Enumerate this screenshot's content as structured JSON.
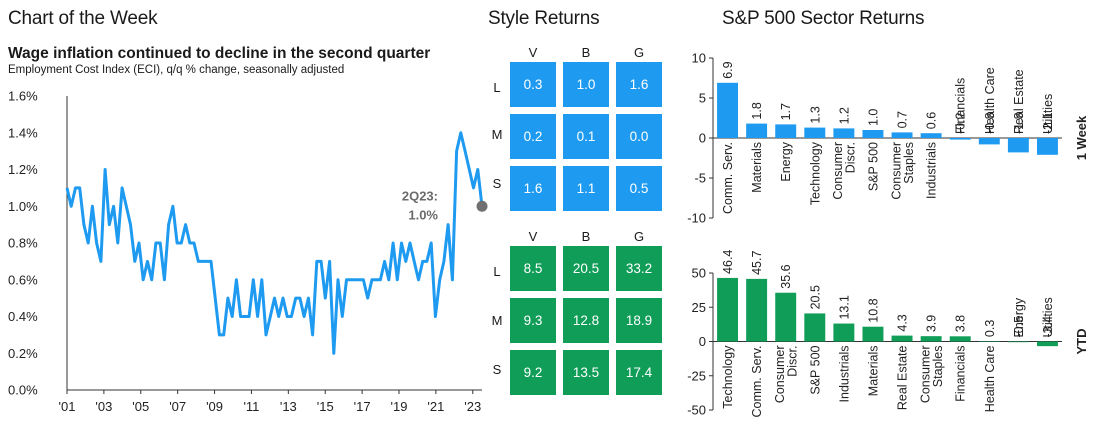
{
  "headers": {
    "chart_of_week": "Chart of the Week",
    "style_returns": "Style Returns",
    "sector_returns": "S&P 500 Sector Returns"
  },
  "colors": {
    "line": "#1e9bf0",
    "blue": "#1e9bf0",
    "green": "#0f9d58",
    "marker": "#707070"
  },
  "chart_data": [
    {
      "type": "line",
      "title": "Wage inflation continued to decline in the second quarter",
      "subtitle": "Employment Cost Index (ECI), q/q % change, seasonally adjusted",
      "ylim": [
        0,
        1.6
      ],
      "yticks": [
        "0.0%",
        "0.2%",
        "0.4%",
        "0.6%",
        "0.8%",
        "1.0%",
        "1.2%",
        "1.4%",
        "1.6%"
      ],
      "xticks": [
        "'01",
        "'03",
        "'05",
        "'07",
        "'09",
        "'11",
        "'13",
        "'15",
        "'17",
        "'19",
        "'21",
        "'23"
      ],
      "xtick_years": [
        2001,
        2003,
        2005,
        2007,
        2009,
        2011,
        2013,
        2015,
        2017,
        2019,
        2021,
        2023
      ],
      "x_start": 2001.0,
      "x_end": 2023.5,
      "annotation": {
        "line1": "2Q23:",
        "line2": "1.0%"
      },
      "series": [
        {
          "values": [
            1.1,
            1.0,
            1.1,
            1.1,
            0.9,
            0.8,
            1.0,
            0.8,
            0.7,
            1.2,
            0.9,
            1.0,
            0.8,
            1.1,
            1.0,
            0.9,
            0.7,
            0.8,
            0.6,
            0.7,
            0.6,
            0.8,
            0.8,
            0.6,
            0.9,
            1.0,
            0.8,
            0.8,
            0.9,
            0.8,
            0.8,
            0.7,
            0.7,
            0.7,
            0.7,
            0.5,
            0.3,
            0.3,
            0.5,
            0.4,
            0.6,
            0.4,
            0.4,
            0.4,
            0.6,
            0.4,
            0.6,
            0.3,
            0.4,
            0.5,
            0.4,
            0.5,
            0.4,
            0.4,
            0.5,
            0.5,
            0.4,
            0.5,
            0.3,
            0.7,
            0.7,
            0.5,
            0.7,
            0.2,
            0.6,
            0.4,
            0.6,
            0.6,
            0.6,
            0.6,
            0.6,
            0.5,
            0.6,
            0.6,
            0.6,
            0.7,
            0.6,
            0.8,
            0.6,
            0.8,
            0.7,
            0.8,
            0.7,
            0.6,
            0.7,
            0.7,
            0.8,
            0.4,
            0.6,
            0.7,
            0.9,
            0.6,
            1.3,
            1.4,
            1.3,
            1.2,
            1.1,
            1.2,
            1.0
          ]
        }
      ]
    },
    {
      "type": "bar",
      "ylabel": "1 Week",
      "ylim": [
        -10,
        10
      ],
      "yticks": [
        "10",
        "5",
        "0",
        "-5",
        "-10"
      ],
      "categories": [
        "Comm. Serv.",
        "Materials",
        "Energy",
        "Technology",
        "Consumer Discr.",
        "S&P 500",
        "Consumer Staples",
        "Industrials",
        "Financials",
        "Health Care",
        "Real Estate",
        "Utilities"
      ],
      "category_lines": [
        [
          "Comm. Serv."
        ],
        [
          "Materials"
        ],
        [
          "Energy"
        ],
        [
          "Technology"
        ],
        [
          "Consumer",
          "Discr."
        ],
        [
          "S&P 500"
        ],
        [
          "Consumer",
          "Staples"
        ],
        [
          "Industrials"
        ],
        [
          "Financials"
        ],
        [
          "Health Care"
        ],
        [
          "Real Estate"
        ],
        [
          "Utilities"
        ]
      ],
      "values": [
        6.9,
        1.8,
        1.7,
        1.3,
        1.2,
        1.0,
        0.7,
        0.6,
        -0.2,
        -0.8,
        -1.8,
        -2.1
      ],
      "labels": [
        "6.9",
        "1.8",
        "1.7",
        "1.3",
        "1.2",
        "1.0",
        "0.7",
        "0.6",
        "-0.2",
        "-0.8",
        "-1.8",
        "-2.1"
      ]
    },
    {
      "type": "bar",
      "ylabel": "YTD",
      "ylim": [
        -50,
        50
      ],
      "yticks": [
        "50",
        "25",
        "0",
        "-25",
        "-50"
      ],
      "categories": [
        "Technology",
        "Comm. Serv.",
        "Consumer Discr.",
        "S&P 500",
        "Industrials",
        "Materials",
        "Real Estate",
        "Consumer Staples",
        "Financials",
        "Health Care",
        "Energy",
        "Utilities"
      ],
      "category_lines": [
        [
          "Technology"
        ],
        [
          "Comm. Serv."
        ],
        [
          "Consumer",
          "Discr."
        ],
        [
          "S&P 500"
        ],
        [
          "Industrials"
        ],
        [
          "Materials"
        ],
        [
          "Real Estate"
        ],
        [
          "Consumer",
          "Staples"
        ],
        [
          "Financials"
        ],
        [
          "Health Care"
        ],
        [
          "Energy"
        ],
        [
          "Utilities"
        ]
      ],
      "values": [
        46.4,
        45.7,
        35.6,
        20.5,
        13.1,
        10.8,
        4.3,
        3.9,
        3.8,
        0.3,
        -0.5,
        -3.4
      ],
      "labels": [
        "46.4",
        "45.7",
        "35.6",
        "20.5",
        "13.1",
        "10.8",
        "4.3",
        "3.9",
        "3.8",
        "0.3",
        "-0.5",
        "-3.4"
      ]
    }
  ],
  "style_returns": {
    "columns": [
      "V",
      "B",
      "G"
    ],
    "rows": [
      "L",
      "M",
      "S"
    ],
    "week": [
      [
        "0.3",
        "1.0",
        "1.6"
      ],
      [
        "0.2",
        "0.1",
        "0.0"
      ],
      [
        "1.6",
        "1.1",
        "0.5"
      ]
    ],
    "ytd": [
      [
        "8.5",
        "20.5",
        "33.2"
      ],
      [
        "9.3",
        "12.8",
        "18.9"
      ],
      [
        "9.2",
        "13.5",
        "17.4"
      ]
    ]
  }
}
